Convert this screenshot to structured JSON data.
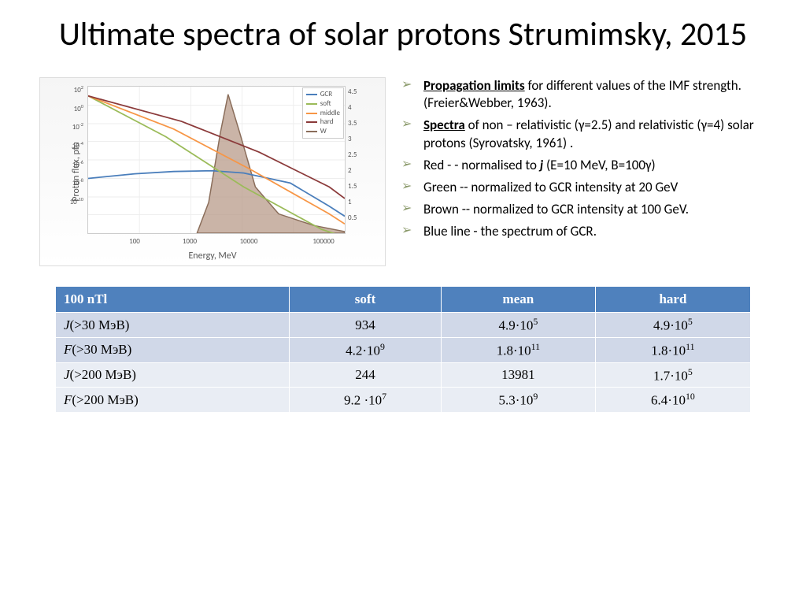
{
  "title": "Ultimate spectra of solar protons Strumimsky, 2015",
  "chart": {
    "type": "line",
    "xlabel": "Energy, MeV",
    "ylabel_left": "Proton flux, pfu",
    "ylabel_right": "Response function, %",
    "x_scale": "log",
    "y_scale_left": "log",
    "xlim": [
      30,
      100000
    ],
    "ylim_left": [
      1e-12,
      10000.0
    ],
    "ylim_right": [
      0,
      5
    ],
    "xticks": [
      100,
      1000,
      10000,
      100000
    ],
    "yticks_left": [
      "10^2",
      "10^0",
      "10^-2",
      "10^-4",
      "10^-6",
      "10^-8",
      "10^-10"
    ],
    "yticks_right": [
      0.5,
      1,
      1.5,
      2,
      2.5,
      3,
      3.5,
      4,
      4.5
    ],
    "background_color": "#f5f5f5",
    "grid_color": "#eeeeee",
    "series": [
      {
        "name": "GCR",
        "color": "#4a7ebb",
        "points": [
          [
            30,
            1e-06
          ],
          [
            300,
            5e-06
          ],
          [
            1000,
            8e-06
          ],
          [
            3000,
            6e-06
          ],
          [
            10000,
            2e-06
          ],
          [
            100000,
            1e-08
          ]
        ]
      },
      {
        "name": "soft",
        "color": "#9bbb59",
        "points": [
          [
            30,
            1000.0
          ],
          [
            1000,
            0.01
          ],
          [
            10000,
            1e-07
          ],
          [
            100000,
            1e-12
          ]
        ]
      },
      {
        "name": "middle",
        "color": "#f79646",
        "points": [
          [
            30,
            1000.0
          ],
          [
            1000,
            0.1
          ],
          [
            10000,
            5e-05
          ],
          [
            100000,
            1e-09
          ]
        ]
      },
      {
        "name": "hard",
        "color": "#8b3a3a",
        "points": [
          [
            30,
            1000.0
          ],
          [
            1000,
            1.0
          ],
          [
            10000,
            0.005
          ],
          [
            100000,
            1e-06
          ]
        ]
      },
      {
        "name": "W",
        "color": "#8a6d5a",
        "fill": "#b89b8a",
        "opacity": 0.7,
        "type": "area",
        "points": [
          [
            1500,
            0
          ],
          [
            2500,
            2
          ],
          [
            3500,
            4.7
          ],
          [
            4500,
            3
          ],
          [
            6000,
            1
          ],
          [
            10000,
            0.2
          ],
          [
            100000,
            0
          ]
        ]
      }
    ]
  },
  "bullets": [
    {
      "lead": "Propagation limits",
      "rest": " for different values of the IMF strength. (Freier&Webber, 1963)."
    },
    {
      "lead": "Spectra",
      "rest": " of non – relativistic (γ=2.5) and relativistic (γ=4) solar protons (Syrovatsky, 1961) ."
    },
    {
      "lead": "",
      "rest": "Red - - normalised to ",
      "it": "j",
      "rest2": " (E=10 MeV, B=100γ)"
    },
    {
      "lead": "",
      "rest": "Green -- normalized to GCR intensity at 20 GeV"
    },
    {
      "lead": "",
      "rest": "Brown -- normalized to GCR intensity at 100 GeV."
    },
    {
      "lead": "",
      "rest": " Blue line - the spectrum of GCR."
    }
  ],
  "table": {
    "columns": [
      "100 nTl",
      "soft",
      "mean",
      "hard"
    ],
    "rows": [
      [
        {
          "it": "J",
          "txt": "(>30 МэВ)"
        },
        "934",
        "4.9·10^5",
        "4.9·10^5"
      ],
      [
        {
          "it": "F",
          "txt": "(>30 МэВ)"
        },
        "4.2·10^9",
        "1.8·10^11",
        "1.8·10^11"
      ],
      [
        {
          "it": "J",
          "txt": "(>200 МэВ)"
        },
        "244",
        "13981",
        "1.7·10^5"
      ],
      [
        {
          "it": "F",
          "txt": "(>200 МэВ)"
        },
        "9.2 ·10^7",
        "5.3·10^9",
        "6.4·10^10"
      ]
    ],
    "header_bg": "#4f81bd",
    "row_bg_1": "#d0d8e8",
    "row_bg_2": "#e9edf4"
  }
}
